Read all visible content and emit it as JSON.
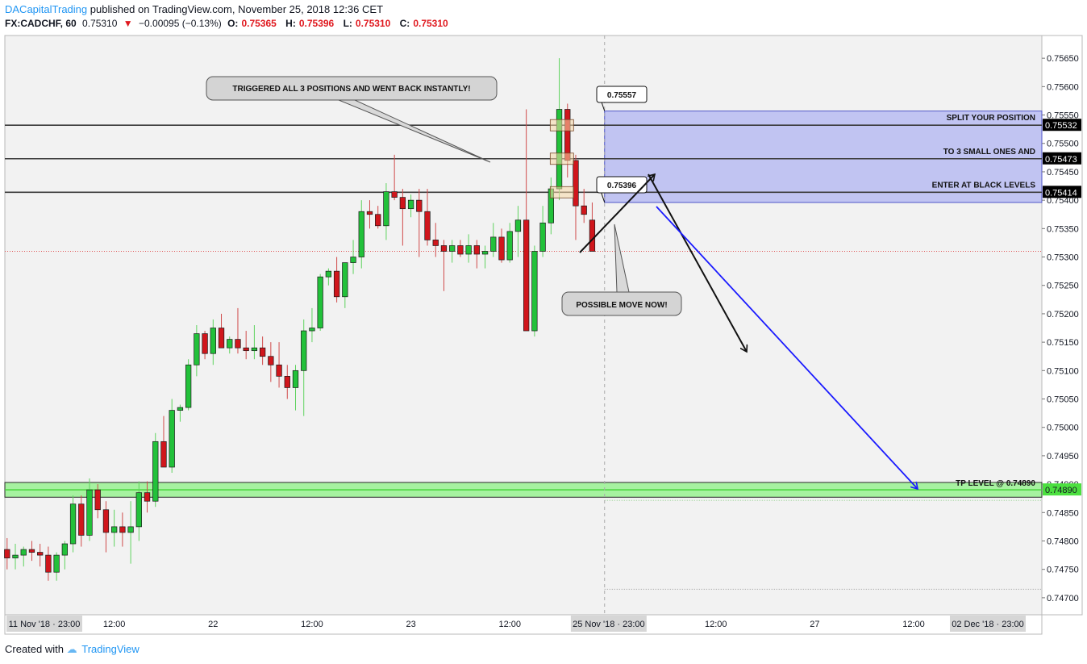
{
  "header": {
    "author": "DACapitalTrading",
    "published": "published on TradingView.com, November 25, 2018 12:36 CET",
    "symbol": "FX:CADCHF, 60",
    "last": "0.75310",
    "change": "−0.00095 (−0.13%)",
    "o_label": "O:",
    "o": "0.75365",
    "h_label": "H:",
    "h": "0.75396",
    "l_label": "L:",
    "l": "0.75310",
    "c_label": "C:",
    "c": "0.75310"
  },
  "footer": {
    "created_with": "Created with",
    "brand": "TradingView"
  },
  "colors": {
    "up": "#22c13a",
    "down": "#d0161c",
    "zone": "#b9bcf2",
    "tp": "#a6f2a0",
    "arrow_blue": "#1a1aff"
  },
  "chart_data": {
    "type": "candlestick",
    "ylim": [
      0.7467,
      0.7569
    ],
    "y_ticks": [
      "0.75650",
      "0.75600",
      "0.75550",
      "0.75500",
      "0.75450",
      "0.75400",
      "0.75350",
      "0.75300",
      "0.75250",
      "0.75200",
      "0.75150",
      "0.75100",
      "0.75050",
      "0.75000",
      "0.74950",
      "0.74900",
      "0.74850",
      "0.74800",
      "0.74750",
      "0.74700"
    ],
    "y_tick_values": [
      0.7565,
      0.756,
      0.7555,
      0.755,
      0.7545,
      0.754,
      0.7535,
      0.753,
      0.7525,
      0.752,
      0.7515,
      0.751,
      0.7505,
      0.75,
      0.7495,
      0.749,
      0.7485,
      0.748,
      0.7475,
      0.747
    ],
    "x_ticks": [
      {
        "label": "11 Nov '18 · 23:00",
        "bar": 0,
        "boxed": true
      },
      {
        "label": "12:00",
        "bar": 13
      },
      {
        "label": "22",
        "bar": 25
      },
      {
        "label": "12:00",
        "bar": 37
      },
      {
        "label": "23",
        "bar": 49
      },
      {
        "label": "12:00",
        "bar": 61
      },
      {
        "label": "25 Nov '18 · 23:00",
        "bar": 73,
        "boxed": true
      },
      {
        "label": "12:00",
        "bar": 86
      },
      {
        "label": "27",
        "bar": 98
      },
      {
        "label": "12:00",
        "bar": 110
      },
      {
        "label": "02 Dec '18 · 23:00",
        "bar": 119,
        "boxed": true
      }
    ],
    "candles": [
      [
        0.74785,
        0.74805,
        0.7475,
        0.7477
      ],
      [
        0.7477,
        0.74795,
        0.7475,
        0.74775
      ],
      [
        0.74775,
        0.7479,
        0.74755,
        0.74785
      ],
      [
        0.74785,
        0.748,
        0.74765,
        0.7478
      ],
      [
        0.7478,
        0.74795,
        0.74755,
        0.74775
      ],
      [
        0.74775,
        0.7479,
        0.7473,
        0.74745
      ],
      [
        0.74745,
        0.7478,
        0.7473,
        0.74775
      ],
      [
        0.74775,
        0.748,
        0.7475,
        0.74795
      ],
      [
        0.74795,
        0.7488,
        0.7478,
        0.74865
      ],
      [
        0.74865,
        0.7488,
        0.7479,
        0.7481
      ],
      [
        0.7481,
        0.7491,
        0.748,
        0.7489
      ],
      [
        0.7489,
        0.749,
        0.7484,
        0.74855
      ],
      [
        0.74855,
        0.7487,
        0.7478,
        0.74815
      ],
      [
        0.74815,
        0.74855,
        0.7479,
        0.74825
      ],
      [
        0.74825,
        0.7485,
        0.7479,
        0.74815
      ],
      [
        0.74815,
        0.7487,
        0.7476,
        0.74825
      ],
      [
        0.74825,
        0.74905,
        0.748,
        0.74885
      ],
      [
        0.74885,
        0.74905,
        0.7485,
        0.7487
      ],
      [
        0.7487,
        0.7499,
        0.7486,
        0.74975
      ],
      [
        0.74975,
        0.7502,
        0.7493,
        0.7493
      ],
      [
        0.7493,
        0.7505,
        0.7492,
        0.7503
      ],
      [
        0.7503,
        0.7504,
        0.7501,
        0.75035
      ],
      [
        0.75035,
        0.7512,
        0.7503,
        0.7511
      ],
      [
        0.7511,
        0.7518,
        0.7509,
        0.75165
      ],
      [
        0.75165,
        0.7517,
        0.7512,
        0.7513
      ],
      [
        0.7513,
        0.7519,
        0.7511,
        0.75175
      ],
      [
        0.75175,
        0.752,
        0.7514,
        0.7514
      ],
      [
        0.7514,
        0.7516,
        0.7513,
        0.75155
      ],
      [
        0.75155,
        0.7521,
        0.7513,
        0.7514
      ],
      [
        0.7514,
        0.7517,
        0.7512,
        0.75135
      ],
      [
        0.75135,
        0.7518,
        0.7512,
        0.7514
      ],
      [
        0.7514,
        0.7516,
        0.7511,
        0.75125
      ],
      [
        0.75125,
        0.7515,
        0.7508,
        0.7511
      ],
      [
        0.7511,
        0.7515,
        0.7507,
        0.7509
      ],
      [
        0.7509,
        0.7511,
        0.7505,
        0.7507
      ],
      [
        0.7507,
        0.7511,
        0.7503,
        0.751
      ],
      [
        0.751,
        0.7519,
        0.7502,
        0.7517
      ],
      [
        0.7517,
        0.7521,
        0.7515,
        0.75175
      ],
      [
        0.75175,
        0.7527,
        0.7517,
        0.75265
      ],
      [
        0.75265,
        0.7528,
        0.7525,
        0.75275
      ],
      [
        0.75275,
        0.753,
        0.7522,
        0.7523
      ],
      [
        0.7523,
        0.7529,
        0.7521,
        0.7529
      ],
      [
        0.7529,
        0.7533,
        0.7527,
        0.753
      ],
      [
        0.753,
        0.754,
        0.7528,
        0.7538
      ],
      [
        0.7538,
        0.754,
        0.7535,
        0.75375
      ],
      [
        0.75375,
        0.7539,
        0.7535,
        0.75355
      ],
      [
        0.75355,
        0.7543,
        0.7533,
        0.75415
      ],
      [
        0.75415,
        0.7548,
        0.754,
        0.75405
      ],
      [
        0.75405,
        0.7542,
        0.7532,
        0.75385
      ],
      [
        0.75385,
        0.7541,
        0.7537,
        0.754
      ],
      [
        0.754,
        0.7542,
        0.753,
        0.7538
      ],
      [
        0.7538,
        0.7542,
        0.7532,
        0.7533
      ],
      [
        0.7533,
        0.7536,
        0.753,
        0.7532
      ],
      [
        0.7532,
        0.7533,
        0.7524,
        0.7531
      ],
      [
        0.7531,
        0.7533,
        0.7529,
        0.7532
      ],
      [
        0.7532,
        0.7533,
        0.753,
        0.75305
      ],
      [
        0.75305,
        0.7534,
        0.7529,
        0.7532
      ],
      [
        0.7532,
        0.7533,
        0.7528,
        0.75305
      ],
      [
        0.75305,
        0.7532,
        0.7528,
        0.7531
      ],
      [
        0.7531,
        0.7536,
        0.753,
        0.75335
      ],
      [
        0.75335,
        0.7535,
        0.7529,
        0.75295
      ],
      [
        0.75295,
        0.7536,
        0.7529,
        0.75345
      ],
      [
        0.75345,
        0.7539,
        0.753,
        0.75365
      ],
      [
        0.75365,
        0.7556,
        0.7517,
        0.7517
      ],
      [
        0.7517,
        0.7532,
        0.7516,
        0.7531
      ],
      [
        0.7531,
        0.7539,
        0.753,
        0.7536
      ],
      [
        0.7536,
        0.7544,
        0.7534,
        0.7542
      ],
      [
        0.7542,
        0.7565,
        0.754,
        0.7556
      ],
      [
        0.7556,
        0.7557,
        0.7544,
        0.7547
      ],
      [
        0.7547,
        0.7548,
        0.7533,
        0.7539
      ],
      [
        0.7539,
        0.7542,
        0.7536,
        0.75375
      ],
      [
        0.75365,
        0.75396,
        0.7531,
        0.7531
      ]
    ],
    "levels": [
      {
        "price": 0.75532,
        "label": "0.75532",
        "text": "SPLIT YOUR POSITION"
      },
      {
        "price": 0.75473,
        "label": "0.75473",
        "text": "TO 3 SMALL ONES AND"
      },
      {
        "price": 0.75414,
        "label": "0.75414",
        "text": "ENTER AT BLACK LEVELS"
      }
    ],
    "zone": {
      "top": 0.75557,
      "bottom": 0.75396,
      "from_bar": 72.5,
      "to_bar": 124
    },
    "tp": {
      "price": 0.7489,
      "label": "0.74890",
      "text": "TP LEVEL @ 0.74890",
      "top": 0.74903,
      "bottom": 0.74877
    },
    "price_callouts": [
      {
        "text": "0.75557",
        "price": 0.75557
      },
      {
        "text": "0.75396",
        "price": 0.75396
      }
    ],
    "notes": [
      {
        "text": "TRIGGERED ALL 3 POSITIONS AND WENT BACK INSTANTLY!"
      },
      {
        "text": "POSSIBLE MOVE NOW!"
      }
    ],
    "current_price": 0.7531,
    "grid": false,
    "scale": "linear"
  }
}
